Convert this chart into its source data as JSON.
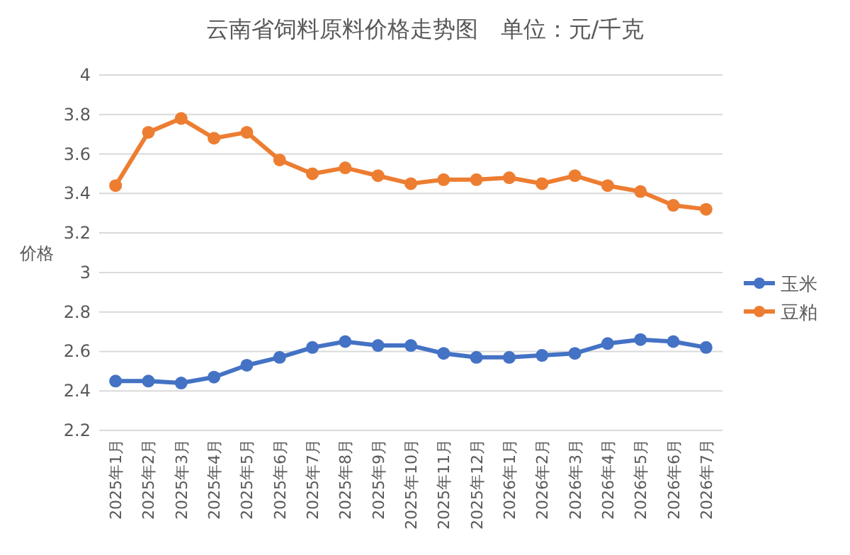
{
  "chart_data": {
    "type": "line",
    "title": "云南省饲料原料价格走势图　单位：元/千克",
    "ylabel": "价格",
    "categories": [
      "2025年1月",
      "2025年2月",
      "2025年3月",
      "2025年4月",
      "2025年5月",
      "2025年6月",
      "2025年7月",
      "2025年8月",
      "2025年9月",
      "2025年10月",
      "2025年11月",
      "2025年12月",
      "2026年1月",
      "2026年2月",
      "2026年3月",
      "2026年4月",
      "2026年5月",
      "2026年6月",
      "2026年7月"
    ],
    "series": [
      {
        "name": "玉米",
        "color": "#4472c4",
        "values": [
          2.45,
          2.45,
          2.44,
          2.47,
          2.53,
          2.57,
          2.62,
          2.65,
          2.63,
          2.63,
          2.59,
          2.57,
          2.57,
          2.58,
          2.59,
          2.64,
          2.66,
          2.65,
          2.62
        ]
      },
      {
        "name": "豆粕",
        "color": "#ed7d31",
        "values": [
          3.44,
          3.71,
          3.78,
          3.68,
          3.71,
          3.57,
          3.5,
          3.53,
          3.49,
          3.45,
          3.47,
          3.47,
          3.48,
          3.45,
          3.49,
          3.44,
          3.41,
          3.34,
          3.32
        ]
      }
    ],
    "ylim": [
      2.2,
      4
    ],
    "yticks": [
      2.2,
      2.4,
      2.6,
      2.8,
      3,
      3.2,
      3.4,
      3.6,
      3.8,
      4
    ],
    "grid": "y",
    "legend": "right",
    "marker": "circle",
    "line_style": "solid"
  }
}
